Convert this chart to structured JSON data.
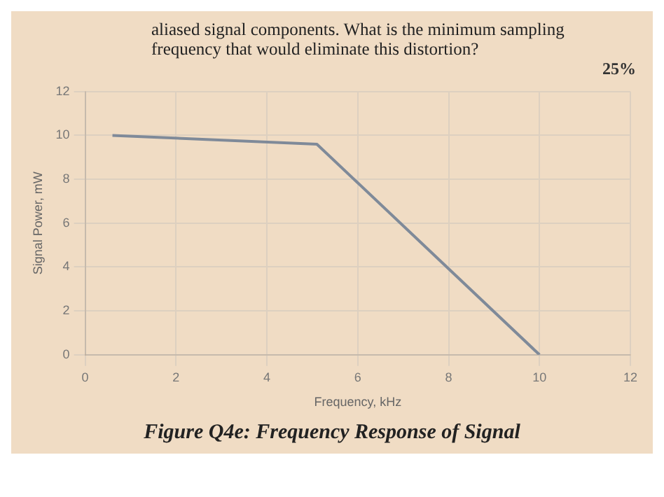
{
  "chart_data": {
    "type": "line",
    "title": "aliased signal components. What is the minimum sampling frequency that would eliminate this distortion?",
    "annotations": [
      "25%",
      "Figure Q4e: Frequency Response of Signal"
    ],
    "xlabel": "Frequency, kHz",
    "ylabel": "Signal Power, mW",
    "x": [
      0.6,
      5.1,
      10
    ],
    "series": [
      {
        "color": "#7f8a99",
        "values": [
          10,
          9.6,
          0
        ]
      }
    ],
    "xlim": [
      0,
      12
    ],
    "xticks": [
      0,
      2,
      4,
      6,
      8,
      10,
      12
    ],
    "ylim": [
      0,
      12
    ],
    "yticks": [
      0,
      2,
      4,
      6,
      8,
      10,
      12
    ],
    "grid": true,
    "marker": "none",
    "line_style": "solid"
  }
}
